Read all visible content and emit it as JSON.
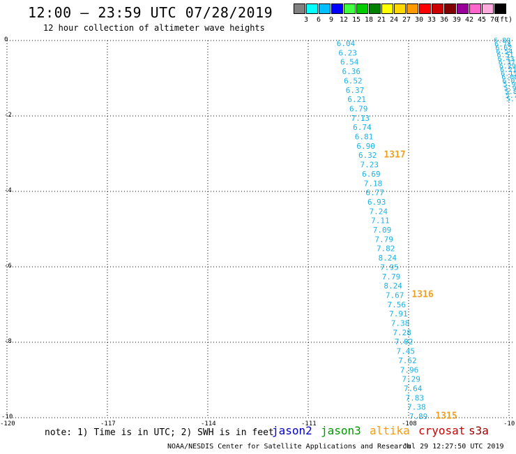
{
  "header": {
    "title": "12:00 — 23:59 UTC 07/28/2019",
    "subtitle": "12 hour collection of altimeter wave heights"
  },
  "legend": {
    "colors": [
      "#808080",
      "#00ffff",
      "#00bfff",
      "#0000ff",
      "#40ff40",
      "#00cc00",
      "#008000",
      "#ffff00",
      "#ffd700",
      "#ff9900",
      "#ff0000",
      "#cc0000",
      "#800000",
      "#990099",
      "#ff66cc",
      "#ffaadd",
      "#000000"
    ],
    "labels": [
      "3",
      "6",
      "9",
      "12",
      "15",
      "18",
      "21",
      "24",
      "27",
      "30",
      "33",
      "36",
      "39",
      "42",
      "45",
      "70"
    ],
    "unit": "(ft)"
  },
  "axes": {
    "y_labels": [
      "0",
      "-2",
      "-4",
      "-6",
      "-8",
      "-10"
    ],
    "x_labels": [
      "-120",
      "-117",
      "-114",
      "-111",
      "-108",
      "-10"
    ]
  },
  "track_main": {
    "color": "#1ab2e6",
    "values": [
      "6.04",
      "6.23",
      "6.54",
      "6.36",
      "6.52",
      "6.37",
      "6.21",
      "6.79",
      "7.13",
      "6.74",
      "6.81",
      "6.90",
      "6.32",
      "7.23",
      "6.69",
      "7.18",
      "6.77",
      "6.93",
      "7.24",
      "7.11",
      "7.09",
      "7.79",
      "7.82",
      "8.24",
      "7.95",
      "7.79",
      "8.24",
      "7.67",
      "7.56",
      "7.91",
      "7.38",
      "7.28",
      "7.02",
      "7.45",
      "7.62",
      "7.96",
      "7.29",
      "7.64",
      "7.83",
      "7.38",
      "7.89"
    ]
  },
  "track_edge": {
    "color": "#1ab2e6",
    "values": [
      "6.80",
      "6.74",
      "6.62",
      "6.54",
      "6.51",
      "6.43",
      "6.37",
      "6.29",
      "6.21",
      "6.15",
      "6.08",
      "6.02",
      "5.98",
      "5.91",
      "5.84",
      "5.77",
      "5.72"
    ]
  },
  "time_labels": [
    {
      "text": "1317",
      "color": "#f0a020"
    },
    {
      "text": "1316",
      "color": "#f0a020"
    },
    {
      "text": "1315",
      "color": "#f0a020"
    }
  ],
  "notes": {
    "note_text": "note: 1) Time is in UTC; 2) SWH is in feet"
  },
  "satellites": [
    {
      "name": "jason2",
      "color": "#0000cc"
    },
    {
      "name": "jason3",
      "color": "#009900"
    },
    {
      "name": "altika",
      "color": "#ff9900"
    },
    {
      "name": "cryosat",
      "color": "#cc0000"
    },
    {
      "name": "s3a",
      "color": "#990000"
    }
  ],
  "footer": {
    "credit": "NOAA/NESDIS Center for Satellite Applications and Research",
    "timestamp": "Jul 29 12:27:50 UTC 2019"
  }
}
